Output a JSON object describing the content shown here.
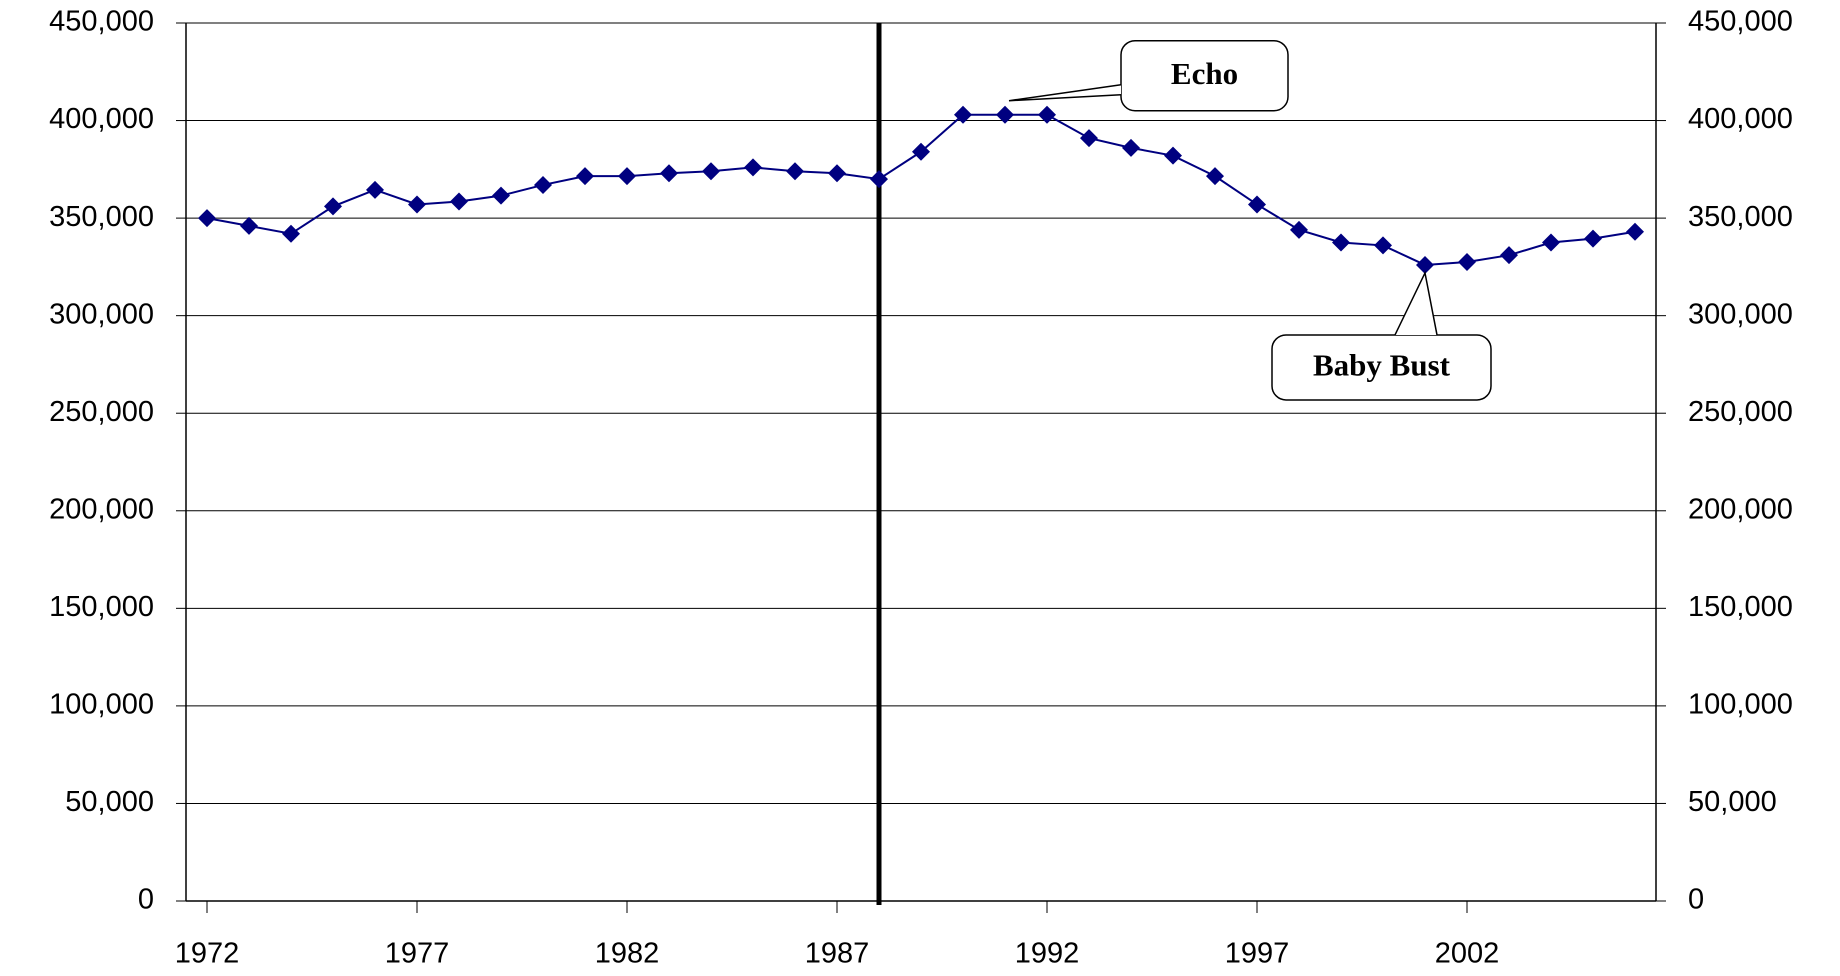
{
  "chart_data": {
    "type": "line",
    "x": [
      1972,
      1973,
      1974,
      1975,
      1976,
      1977,
      1978,
      1979,
      1980,
      1981,
      1982,
      1983,
      1984,
      1985,
      1986,
      1987,
      1988,
      1989,
      1990,
      1991,
      1992,
      1993,
      1994,
      1995,
      1996,
      1997,
      1998,
      1999,
      2000,
      2001,
      2002,
      2003,
      2004,
      2005,
      2006
    ],
    "series": [
      {
        "color": "#000080",
        "values": [
          350000,
          346000,
          342000,
          356000,
          364500,
          357000,
          358500,
          361500,
          367000,
          371500,
          371500,
          373000,
          374000,
          376000,
          374000,
          373000,
          370000,
          384000,
          403000,
          403000,
          403000,
          391000,
          386000,
          382000,
          371500,
          357000,
          344000,
          337500,
          336000,
          326000,
          327500,
          331000,
          337500,
          339500,
          343000
        ]
      }
    ],
    "xlim": [
      1971.5,
      2006.5
    ],
    "xticks": [
      1972,
      1977,
      1982,
      1987,
      1992,
      1997,
      2002
    ],
    "ylim": [
      0,
      450000
    ],
    "yticks": [
      0,
      {
        "value": 50000,
        "label": "50,000"
      },
      {
        "value": 100000,
        "label": "100,000"
      },
      {
        "value": 150000,
        "label": "150,000"
      },
      {
        "value": 200000,
        "label": "200,000"
      },
      {
        "value": 250000,
        "label": "250,000"
      },
      {
        "value": 300000,
        "label": "300,000"
      },
      {
        "value": 350000,
        "label": "350,000"
      },
      {
        "value": 400000,
        "label": "400,000"
      },
      {
        "value": 450000,
        "label": "450,000"
      }
    ],
    "y2lim": [
      0,
      450000
    ],
    "y2ticks": [
      0,
      {
        "value": 50000,
        "label": "50,000"
      },
      {
        "value": 100000,
        "label": "100,000"
      },
      {
        "value": 150000,
        "label": "150,000"
      },
      {
        "value": 200000,
        "label": "200,000"
      },
      {
        "value": 250000,
        "label": "250,000"
      },
      {
        "value": 300000,
        "label": "300,000"
      },
      {
        "value": 350000,
        "label": "350,000"
      },
      {
        "value": 400000,
        "label": "400,000"
      },
      {
        "value": 450000,
        "label": "450,000"
      }
    ],
    "grid": true,
    "vline": 1988,
    "annotations": [
      {
        "text": "Echo",
        "x": 1991,
        "y": 403000
      },
      {
        "text": "Baby Bust",
        "x": 2001,
        "y": 326000
      }
    ]
  }
}
